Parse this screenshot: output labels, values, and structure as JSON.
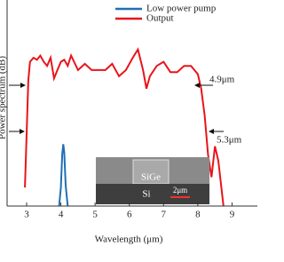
{
  "chart_data": {
    "type": "line",
    "x_label": "Wavelength (μm)",
    "y_label": "Power spectrum (dB)",
    "xlim": [
      2.43,
      9.74
    ],
    "ylim": [
      0,
      10
    ],
    "xticks": [
      3,
      4,
      5,
      6,
      7,
      8,
      9
    ],
    "legend": "top-right",
    "series": [
      {
        "name": "Low power pump",
        "color": "#1f6fb4",
        "x": [
          3.95,
          4.0,
          4.04,
          4.07,
          4.1,
          4.14,
          4.2
        ],
        "values": [
          0,
          0.9,
          2.5,
          3.0,
          2.6,
          1.0,
          0
        ]
      },
      {
        "name": "Output",
        "color": "#e8141b",
        "x": [
          2.95,
          3.0,
          3.05,
          3.1,
          3.2,
          3.3,
          3.4,
          3.5,
          3.6,
          3.7,
          3.8,
          3.9,
          4.0,
          4.1,
          4.2,
          4.3,
          4.5,
          4.7,
          4.9,
          5.1,
          5.3,
          5.5,
          5.7,
          5.9,
          6.1,
          6.25,
          6.4,
          6.5,
          6.6,
          6.8,
          7.0,
          7.2,
          7.4,
          7.6,
          7.8,
          8.0,
          8.1,
          8.2,
          8.3,
          8.4,
          8.5,
          8.6,
          8.75
        ],
        "values": [
          0.9,
          3.5,
          6.1,
          7.0,
          7.2,
          7.1,
          7.3,
          7.0,
          6.8,
          7.2,
          6.2,
          6.6,
          7.0,
          7.1,
          6.8,
          7.3,
          6.6,
          6.9,
          6.6,
          6.6,
          6.6,
          6.9,
          6.3,
          6.6,
          7.2,
          7.6,
          6.6,
          5.7,
          6.3,
          6.8,
          7.0,
          6.5,
          6.5,
          6.8,
          6.8,
          6.4,
          5.7,
          4.4,
          2.5,
          1.4,
          2.9,
          2.2,
          0
        ]
      }
    ],
    "annotations": [
      "4.9μm",
      "5.3μm"
    ],
    "inset": {
      "labels": [
        "SiGe",
        "Si",
        "2μm"
      ]
    }
  }
}
